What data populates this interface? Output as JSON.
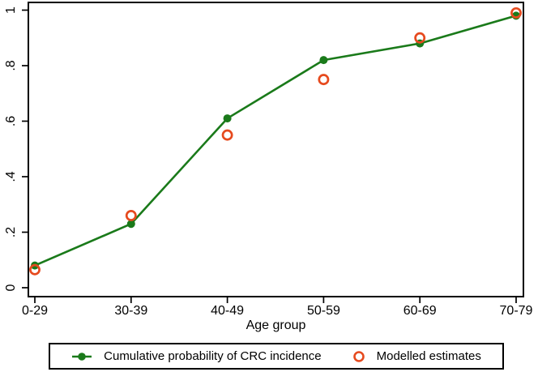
{
  "chart_data": {
    "type": "line",
    "title": "",
    "xlabel": "Age group",
    "ylabel": "",
    "categories": [
      "0-29",
      "30-39",
      "40-49",
      "50-59",
      "60-69",
      "70-79"
    ],
    "series": [
      {
        "name": "Cumulative probability of CRC incidence",
        "style": "line-with-filled-circle-markers",
        "color": "#1a7a1a",
        "values": [
          0.08,
          0.23,
          0.61,
          0.82,
          0.88,
          0.98
        ]
      },
      {
        "name": "Modelled estimates",
        "style": "open-circle-scatter",
        "color": "#e64a1e",
        "values": [
          0.065,
          0.26,
          0.55,
          0.75,
          0.9,
          0.99
        ]
      }
    ],
    "ylim": [
      0,
      1
    ],
    "yticks": [
      0,
      0.2,
      0.4,
      0.6,
      0.8,
      1
    ],
    "ytick_labels": [
      "0",
      ".2",
      ".4",
      ".6",
      ".8",
      "1"
    ],
    "ytick_label_rotation_deg": -90,
    "grid": false,
    "legend_position": "bottom-boxed",
    "axis_color": "#000000",
    "background_color": "#ffffff"
  }
}
